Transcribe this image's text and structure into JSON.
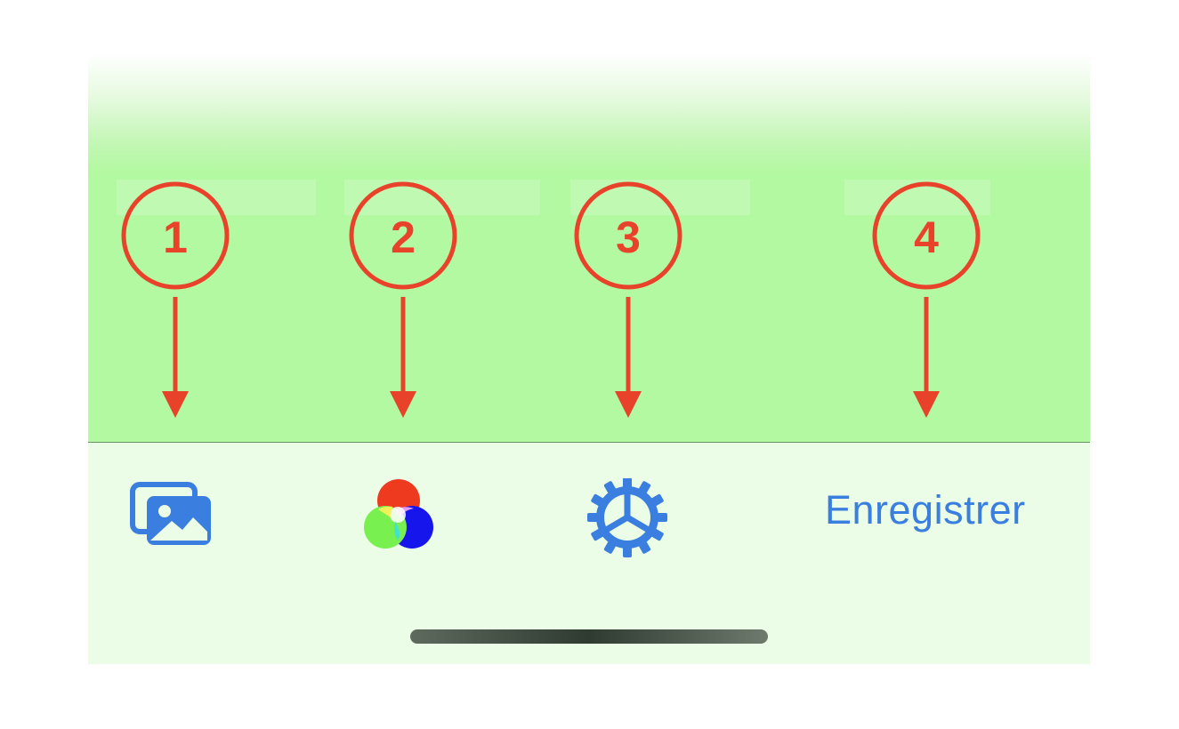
{
  "toolbar": {
    "photos_icon": "photos-icon",
    "colors_icon": "color-mixer-icon",
    "settings_icon": "gear-icon",
    "save_label": "Enregistrer"
  },
  "annotations": {
    "markers": [
      "1",
      "2",
      "3",
      "4"
    ],
    "color": "#e8432a"
  },
  "colors": {
    "accent": "#3a7fe0",
    "top_background": "#b3f9a1",
    "toolbar_background": "#ebfde6"
  }
}
